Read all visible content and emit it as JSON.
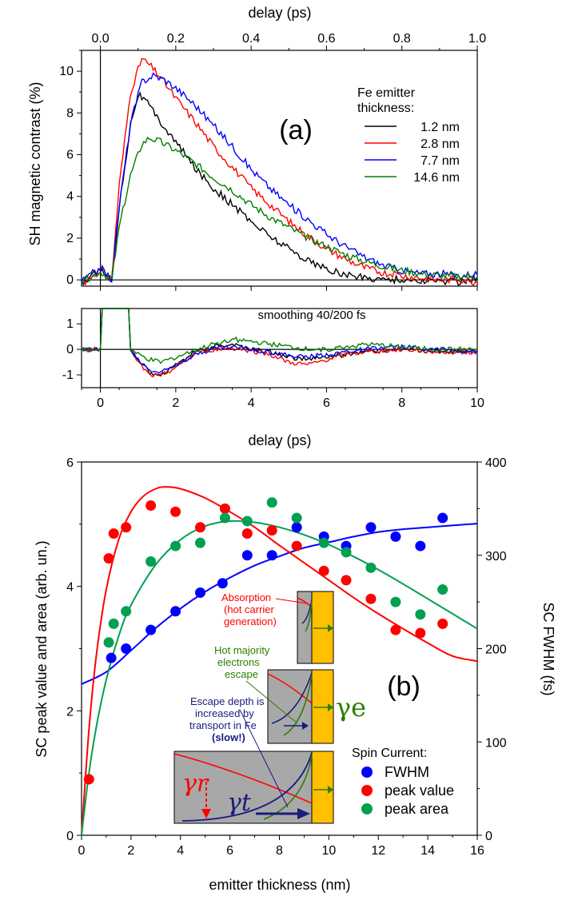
{
  "chart_data": [
    {
      "panel_label": "(a)",
      "type": "line",
      "xlabel_bottom": "delay (ps)",
      "xlabel_top": "delay (ps)",
      "ylabel": "SH magnetic contrast (%)",
      "xlim": [
        -0.5,
        10
      ],
      "top_xlim": [
        -0.5,
        10
      ],
      "ylim": [
        -0.3,
        11
      ],
      "xticks": [
        "0",
        "2",
        "4",
        "6",
        "8",
        "10"
      ],
      "top_ticks": [
        "0.0",
        "0.2",
        "0.4",
        "0.6",
        "0.8",
        "1.0"
      ],
      "yticks": [
        "0",
        "2",
        "4",
        "6",
        "8",
        "10"
      ],
      "legend_title_1": "Fe emitter",
      "legend_title_2": "thickness:",
      "legend_position": "top-right",
      "series": [
        {
          "name": "1.2 nm",
          "color": "#000000",
          "peak": 8.9,
          "peak_x": 1.0,
          "tau": 1.9,
          "offset": -0.1,
          "x": [
            -0.5,
            0,
            0.3,
            0.5,
            0.8,
            1.0,
            1.2,
            1.5,
            2,
            2.5,
            3,
            3.5,
            4,
            4.5,
            5,
            5.5,
            6,
            6.5,
            7,
            7.5,
            8,
            8.5,
            9,
            9.5,
            10
          ],
          "y": [
            -0.2,
            0.5,
            0.0,
            3.5,
            7.5,
            8.9,
            8.6,
            7.8,
            6.6,
            5.4,
            4.4,
            3.6,
            2.8,
            2.1,
            1.5,
            0.95,
            0.5,
            0.25,
            0.1,
            0.05,
            0.0,
            -0.05,
            -0.05,
            -0.1,
            0.1
          ]
        },
        {
          "name": "2.8 nm",
          "color": "#ff0000",
          "peak": 10.6,
          "peak_x": 1.1,
          "tau": 2.4,
          "offset": -0.2,
          "x": [
            -0.5,
            0,
            0.3,
            0.5,
            0.8,
            1.1,
            1.3,
            1.6,
            2,
            2.5,
            3,
            3.5,
            4,
            4.5,
            5,
            5.5,
            6,
            6.5,
            7,
            7.5,
            8,
            8.5,
            9,
            9.5,
            10
          ],
          "y": [
            -0.2,
            0.5,
            0.0,
            4.5,
            9.0,
            10.6,
            10.3,
            9.7,
            8.7,
            7.6,
            6.4,
            5.4,
            4.4,
            3.6,
            2.8,
            2.1,
            1.5,
            1.0,
            0.6,
            0.35,
            0.2,
            0.1,
            0.0,
            0.05,
            -0.1
          ]
        },
        {
          "name": "7.7 nm",
          "color": "#0000ff",
          "peak": 9.8,
          "peak_x": 1.4,
          "tau": 2.6,
          "offset": 0.2,
          "x": [
            -0.5,
            0,
            0.3,
            0.5,
            0.8,
            1.1,
            1.4,
            1.7,
            2,
            2.5,
            3,
            3.5,
            4,
            4.5,
            5,
            5.5,
            6,
            6.5,
            7,
            7.5,
            8,
            8.5,
            9,
            9.5,
            10
          ],
          "y": [
            -0.1,
            0.6,
            0.0,
            3.5,
            7.5,
            9.5,
            9.8,
            9.6,
            9.2,
            8.4,
            7.4,
            6.4,
            5.3,
            4.4,
            3.6,
            2.9,
            2.2,
            1.6,
            1.1,
            0.7,
            0.45,
            0.3,
            0.3,
            0.2,
            0.3
          ]
        },
        {
          "name": "14.6 nm",
          "color": "#008000",
          "peak": 6.8,
          "peak_x": 1.3,
          "tau": 2.9,
          "offset": 0.1,
          "x": [
            -0.5,
            0,
            0.3,
            0.5,
            0.8,
            1.1,
            1.3,
            1.6,
            2,
            2.5,
            3,
            3.5,
            4,
            4.5,
            5,
            5.5,
            6,
            6.5,
            7,
            7.5,
            8,
            8.5,
            9,
            9.5,
            10
          ],
          "y": [
            -0.1,
            0.4,
            0.0,
            2.5,
            5.0,
            6.5,
            6.8,
            6.6,
            6.2,
            5.6,
            4.9,
            4.3,
            3.6,
            3.0,
            2.5,
            2.0,
            1.6,
            1.2,
            0.9,
            0.65,
            0.45,
            0.3,
            0.2,
            0.15,
            0.2
          ]
        }
      ]
    },
    {
      "type": "line",
      "annotation": "smoothing 40/200 fs",
      "xlabel": "delay (ps)",
      "xlim": [
        -0.5,
        10
      ],
      "ylim": [
        -1.5,
        1.6
      ],
      "xticks": [
        "0",
        "2",
        "4",
        "6",
        "8",
        "10"
      ],
      "yticks": [
        "-1",
        "0",
        "1"
      ],
      "series": [
        {
          "name": "1.2 nm",
          "color": "#000000",
          "x": [
            -0.5,
            0,
            0.5,
            0.8,
            1.0,
            1.3,
            1.6,
            2.0,
            2.5,
            3.0,
            3.5,
            4.0,
            4.5,
            5.0,
            5.5,
            6.0,
            6.5,
            7.0,
            8.0,
            9.0,
            10
          ],
          "y": [
            0,
            0,
            0.3,
            0.0,
            -0.4,
            -0.9,
            -1.0,
            -0.6,
            -0.1,
            0.1,
            0.2,
            0.0,
            -0.1,
            -0.3,
            -0.4,
            -0.3,
            -0.2,
            -0.1,
            0.0,
            -0.1,
            -0.1
          ]
        },
        {
          "name": "2.8 nm",
          "color": "#ff0000",
          "x": [
            -0.5,
            0,
            0.5,
            0.8,
            1.0,
            1.3,
            1.6,
            2.0,
            2.5,
            3.0,
            3.5,
            4.0,
            4.5,
            5.0,
            5.5,
            6.0,
            6.5,
            7.0,
            8.0,
            9.0,
            10
          ],
          "y": [
            0,
            0,
            0.3,
            0.0,
            -0.5,
            -1.0,
            -1.05,
            -0.7,
            -0.2,
            0.0,
            0.05,
            -0.05,
            -0.2,
            -0.5,
            -0.6,
            -0.4,
            -0.2,
            -0.1,
            0.0,
            -0.1,
            -0.1
          ]
        },
        {
          "name": "7.7 nm",
          "color": "#0000ff",
          "x": [
            -0.5,
            0,
            0.5,
            0.8,
            1.0,
            1.3,
            1.6,
            2.0,
            2.5,
            3.0,
            3.5,
            4.0,
            4.5,
            5.0,
            5.5,
            6.0,
            6.5,
            7.0,
            8.0,
            9.0,
            10
          ],
          "y": [
            0,
            0,
            0.3,
            0.0,
            -0.4,
            -0.8,
            -0.9,
            -0.6,
            -0.2,
            0.05,
            0.1,
            0.0,
            -0.1,
            -0.25,
            -0.3,
            -0.2,
            -0.1,
            0.0,
            0.1,
            0.0,
            -0.1
          ]
        },
        {
          "name": "14.6 nm",
          "color": "#008000",
          "x": [
            -0.5,
            0,
            0.5,
            0.8,
            1.0,
            1.3,
            1.6,
            2.0,
            2.5,
            3.0,
            3.5,
            4.0,
            4.5,
            5.0,
            5.5,
            6.0,
            6.5,
            7.0,
            8.0,
            9.0,
            10
          ],
          "y": [
            0,
            0,
            0.3,
            0.0,
            -0.2,
            -0.4,
            -0.5,
            -0.3,
            -0.05,
            0.2,
            0.4,
            0.3,
            0.2,
            0.1,
            0.0,
            0.0,
            0.1,
            0.2,
            0.1,
            0.0,
            0.0
          ]
        }
      ]
    },
    {
      "panel_label": "(b)",
      "type": "scatter",
      "xlabel": "emitter thickness (nm)",
      "ylabel_left": "SC peak value and area (arb. un.)",
      "ylabel_right": "SC FWHM (fs)",
      "xlim": [
        0,
        16
      ],
      "ylim_left": [
        0,
        6
      ],
      "ylim_right": [
        0,
        400
      ],
      "xticks": [
        "0",
        "2",
        "4",
        "6",
        "8",
        "10",
        "12",
        "14",
        "16"
      ],
      "yticks_left": [
        "0",
        "2",
        "4",
        "6"
      ],
      "yticks_right": [
        "0",
        "100",
        "200",
        "300",
        "400"
      ],
      "legend_title": "Spin Current:",
      "legend_position": "bottom-right",
      "series": [
        {
          "name": "FWHM",
          "color": "#0000ff",
          "axis": "right",
          "x": [
            1.2,
            1.8,
            2.8,
            3.8,
            4.8,
            5.7,
            6.7,
            7.7,
            8.7,
            9.8,
            10.7,
            11.7,
            12.7,
            13.7,
            14.6
          ],
          "y": [
            190,
            200,
            220,
            240,
            260,
            270,
            300,
            300,
            330,
            320,
            310,
            330,
            320,
            310,
            340
          ]
        },
        {
          "name": "peak value",
          "color": "#ff0000",
          "axis": "left",
          "x": [
            0.3,
            1.1,
            1.3,
            1.8,
            2.8,
            3.8,
            4.8,
            5.8,
            6.7,
            7.7,
            8.7,
            9.8,
            10.7,
            11.7,
            12.7,
            13.7,
            14.6
          ],
          "y": [
            0.9,
            4.45,
            4.85,
            4.95,
            5.3,
            5.2,
            4.95,
            5.25,
            4.85,
            4.9,
            4.65,
            4.25,
            4.1,
            3.8,
            3.3,
            3.25,
            3.4
          ]
        },
        {
          "name": "peak area",
          "color": "#00a050",
          "axis": "left",
          "x": [
            1.1,
            1.3,
            1.8,
            2.8,
            3.8,
            4.8,
            5.8,
            6.7,
            7.7,
            8.7,
            9.8,
            10.7,
            11.7,
            12.7,
            13.7,
            14.6
          ],
          "y": [
            3.1,
            3.4,
            3.6,
            4.4,
            4.65,
            4.7,
            5.1,
            5.05,
            5.35,
            5.1,
            4.7,
            4.55,
            4.3,
            3.75,
            3.55,
            3.95
          ]
        }
      ],
      "fits": [
        {
          "name": "FWHM fit",
          "color": "#0000ff",
          "axis": "right",
          "x": [
            0,
            1,
            2,
            3,
            4,
            5,
            6,
            7,
            8,
            9,
            10,
            11,
            12,
            13,
            14,
            15,
            16
          ],
          "y": [
            162,
            175,
            198,
            222,
            243,
            261,
            276,
            289,
            299,
            308,
            314,
            320,
            325,
            328,
            330,
            332,
            334
          ]
        },
        {
          "name": "peak value fit",
          "color": "#ff0000",
          "axis": "left",
          "x": [
            0,
            0.3,
            0.6,
            1,
            1.5,
            2,
            2.5,
            3,
            3.4,
            4,
            5,
            6,
            7,
            8,
            9,
            10,
            11,
            12,
            13,
            14,
            15,
            16
          ],
          "y": [
            0,
            1.7,
            2.9,
            3.95,
            4.75,
            5.2,
            5.45,
            5.57,
            5.6,
            5.57,
            5.42,
            5.2,
            4.95,
            4.66,
            4.38,
            4.1,
            3.82,
            3.56,
            3.32,
            3.09,
            2.88,
            2.8
          ]
        },
        {
          "name": "peak area fit",
          "color": "#00a050",
          "axis": "left",
          "x": [
            0,
            0.3,
            0.6,
            1,
            1.5,
            2,
            3,
            4,
            5,
            6,
            7,
            8,
            9,
            10,
            11,
            12,
            13,
            14,
            15,
            16
          ],
          "y": [
            0,
            1.0,
            1.75,
            2.5,
            3.2,
            3.7,
            4.35,
            4.75,
            4.97,
            5.05,
            5.03,
            4.95,
            4.83,
            4.67,
            4.48,
            4.27,
            4.04,
            3.8,
            3.56,
            3.32
          ]
        }
      ],
      "inset": {
        "absorption_1": "Absorption",
        "absorption_2": "(hot carrier",
        "absorption_3": "generation)",
        "escape_1": "Hot majority",
        "escape_2": "electrons",
        "escape_3": "escape",
        "transport_1": "Escape depth is",
        "transport_2": "increased by",
        "transport_3": "transport in Fe",
        "transport_4": "(slow!)",
        "gamma_e": "γe",
        "gamma_r": "γr",
        "gamma_t": "γt",
        "absorption_color": "#ff0000",
        "escape_color": "#2e7d00",
        "transport_color": "#1a1a80",
        "gold_color": "#ffc000"
      }
    }
  ]
}
